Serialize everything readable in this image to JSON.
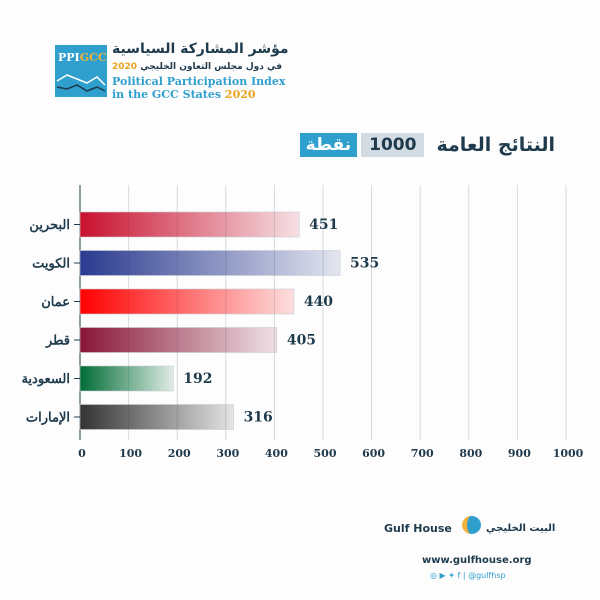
{
  "header": {
    "logo_text_1": "PPI",
    "logo_text_2": "GCC",
    "title_ar_line1": "مؤشر المشاركة السياسية",
    "title_ar_line2": "في دول مجلس التعاون الخليجي",
    "title_year": "2020",
    "title_en_line1": "Political Participation Index",
    "title_en_line2": "in the GCC States"
  },
  "heading": {
    "text": "النتائج العامة",
    "max": "1000",
    "unit": "نقطة"
  },
  "chart_data": {
    "type": "bar",
    "orientation": "horizontal",
    "categories": [
      "البحرين",
      "الكويت",
      "عمان",
      "قطر",
      "السعودية",
      "الإمارات"
    ],
    "values": [
      451,
      535,
      440,
      405,
      192,
      316
    ],
    "colors": [
      "#c8102e",
      "#2a3a8f",
      "#ff0000",
      "#8a1538",
      "#006c35",
      "#333333"
    ],
    "xlim": [
      0,
      1000
    ],
    "xticks": [
      "0",
      "100",
      "200",
      "300",
      "400",
      "500",
      "600",
      "700",
      "800",
      "900",
      "1000"
    ],
    "grid": true,
    "title": "",
    "xlabel": "",
    "ylabel": ""
  },
  "footer": {
    "brand": "Gulf House",
    "brand_ar": "البيت الخليجي",
    "url": "www.gulfhouse.org",
    "social": "@gulfhsp"
  }
}
